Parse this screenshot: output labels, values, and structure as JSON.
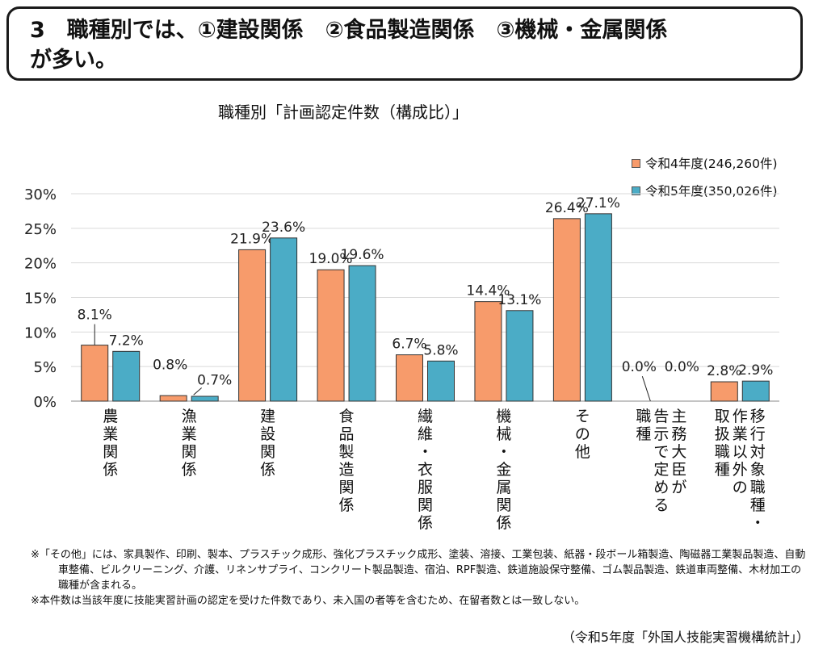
{
  "headline": {
    "line1": "3　職種別では、①建設関係　②食品製造関係　③機械・金属関係",
    "line2": "が多い。"
  },
  "chart_data": {
    "type": "bar",
    "title": "職種別「計画認定件数（構成比）」",
    "categories": [
      "農業関係",
      "漁業関係",
      "建設関係",
      "食品製造関係",
      "繊維・衣服関係",
      "機械・金属関係",
      "その他",
      "主務大臣が告示で定める職種",
      "移行対象職種・作業以外の取扱職種"
    ],
    "category_label_lines": [
      [
        "農業関係"
      ],
      [
        "漁業関係"
      ],
      [
        "建設関係"
      ],
      [
        "食品製造関係"
      ],
      [
        "繊維・衣服関係"
      ],
      [
        "機械・金属関係"
      ],
      [
        "その他"
      ],
      [
        "主務大臣が",
        "告示で定める",
        "職種"
      ],
      [
        "移行対象職種・",
        "作業以外の",
        "取扱職種"
      ]
    ],
    "series": [
      {
        "name": "令和4年度(246,260件)",
        "color": "#F79B6B",
        "values": [
          8.1,
          0.8,
          21.9,
          19.0,
          6.7,
          14.4,
          26.4,
          0.0,
          2.8
        ],
        "labels": [
          "8.1%",
          "0.8%",
          "21.9%",
          "19.0%",
          "6.7%",
          "14.4%",
          "26.4%",
          "0.0%",
          "2.8%"
        ]
      },
      {
        "name": "令和5年度(350,026件)",
        "color": "#4BACC6",
        "values": [
          7.2,
          0.7,
          23.6,
          19.6,
          5.8,
          13.1,
          27.1,
          0.0,
          2.9
        ],
        "labels": [
          "7.2%",
          "0.7%",
          "23.6%",
          "19.6%",
          "5.8%",
          "13.1%",
          "27.1%",
          "0.0%",
          "2.9%"
        ]
      }
    ],
    "y_ticks": [
      "0%",
      "5%",
      "10%",
      "15%",
      "20%",
      "25%",
      "30%"
    ],
    "ylim": [
      0,
      30
    ],
    "grid": true,
    "legend_position": "top-right"
  },
  "notes": [
    "※「その他」には、家具製作、印刷、製本、プラスチック成形、強化プラスチック成形、塗装、溶接、工業包装、紙器・段ボール箱製造、陶磁器工業製品製造、自動車整備、ビルクリーニング、介護、リネンサプライ、コンクリート製品製造、宿泊、RPF製造、鉄道施設保守整備、ゴム製品製造、鉄道車両整備、木材加工の職種が含まれる。",
    "※本件数は当該年度に技能実習計画の認定を受けた件数であり、未入国の者等を含むため、在留者数とは一致しない。"
  ],
  "source": "（令和5年度「外国人技能実習機構統計」）"
}
